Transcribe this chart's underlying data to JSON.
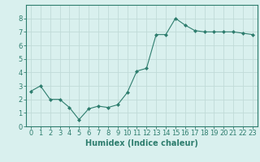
{
  "x": [
    0,
    1,
    2,
    3,
    4,
    5,
    6,
    7,
    8,
    9,
    10,
    11,
    12,
    13,
    14,
    15,
    16,
    17,
    18,
    19,
    20,
    21,
    22,
    23
  ],
  "y": [
    2.6,
    3.0,
    2.0,
    2.0,
    1.4,
    0.5,
    1.3,
    1.5,
    1.4,
    1.6,
    2.5,
    4.1,
    4.3,
    6.8,
    6.8,
    8.0,
    7.5,
    7.1,
    7.0,
    7.0,
    7.0,
    7.0,
    6.9,
    6.8
  ],
  "line_color": "#2e7d6e",
  "marker": "D",
  "marker_size": 2,
  "background_color": "#d9f0ee",
  "grid_color": "#c0dbd8",
  "axis_color": "#2e7d6e",
  "xlabel": "Humidex (Indice chaleur)",
  "xlabel_fontsize": 7,
  "tick_fontsize": 6,
  "ylim": [
    0,
    9
  ],
  "xlim": [
    -0.5,
    23.5
  ],
  "yticks": [
    0,
    1,
    2,
    3,
    4,
    5,
    6,
    7,
    8
  ],
  "xticks": [
    0,
    1,
    2,
    3,
    4,
    5,
    6,
    7,
    8,
    9,
    10,
    11,
    12,
    13,
    14,
    15,
    16,
    17,
    18,
    19,
    20,
    21,
    22,
    23
  ]
}
